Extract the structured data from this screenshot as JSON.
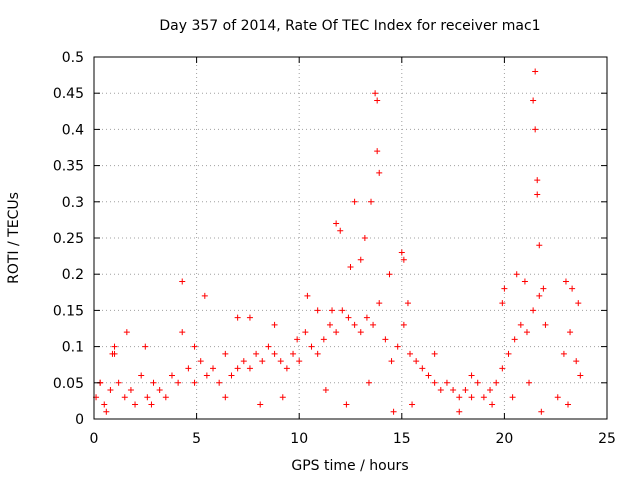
{
  "chart_data": {
    "type": "scatter",
    "title": "Day 357 of 2014, Rate Of TEC Index for receiver mac1",
    "xlabel": "GPS time / hours",
    "ylabel": "ROTI / TECUs",
    "xlim": [
      0,
      25
    ],
    "ylim": [
      0,
      0.5
    ],
    "x_ticks": [
      "0",
      "5",
      "10",
      "15",
      "20",
      "25"
    ],
    "y_ticks": [
      "0",
      "0.05",
      "0.1",
      "0.15",
      "0.2",
      "0.25",
      "0.3",
      "0.35",
      "0.4",
      "0.45",
      "0.5"
    ],
    "grid": true,
    "legend": "none",
    "marker": "+",
    "color": "#ff0000",
    "series": [
      {
        "x": [
          0.1,
          0.3,
          0.5,
          0.8,
          1.0,
          1.2,
          1.5,
          1.8,
          2.0,
          2.3,
          2.6,
          2.9,
          3.2,
          3.5,
          3.8,
          4.1,
          4.3,
          4.6,
          4.9,
          5.2,
          5.5,
          5.8,
          6.1,
          6.4,
          6.7,
          7.0,
          7.3,
          7.6,
          7.9,
          8.2,
          8.5,
          8.8,
          9.1,
          9.4,
          9.7,
          10.0,
          10.3,
          10.6,
          10.9,
          11.2,
          11.5,
          11.8,
          12.1,
          12.4,
          12.7,
          13.0,
          13.3,
          13.6,
          13.9,
          14.2,
          14.5,
          14.8,
          15.1,
          15.4,
          15.7,
          16.0,
          16.3,
          16.6,
          16.9,
          17.2,
          17.5,
          17.8,
          18.1,
          18.4,
          18.7,
          19.0,
          19.3,
          19.6,
          19.9,
          20.2,
          20.5,
          20.8,
          21.1,
          21.4,
          21.7,
          22.0,
          22.6,
          22.9,
          23.2,
          23.5,
          23.7,
          0.3,
          0.9,
          1.0,
          1.6,
          2.5,
          4.3,
          4.9,
          5.4,
          7.0,
          7.6,
          8.8,
          9.9,
          10.4,
          10.9,
          11.6,
          11.8,
          12.0,
          12.5,
          12.7,
          13.0,
          13.2,
          13.5,
          13.7,
          13.8,
          13.8,
          13.9,
          14.4,
          15.0,
          15.1,
          15.3,
          16.6,
          18.4,
          19.9,
          20.0,
          20.6,
          21.0,
          21.4,
          21.5,
          21.5,
          21.6,
          21.6,
          21.7,
          21.9,
          23.0,
          23.3,
          23.6,
          0.6,
          2.8,
          6.4,
          8.1,
          9.2,
          11.3,
          12.3,
          13.4,
          14.6,
          15.5,
          17.8,
          19.4,
          20.4,
          21.2,
          21.8,
          23.1
        ],
        "y": [
          0.03,
          0.05,
          0.02,
          0.04,
          0.09,
          0.05,
          0.03,
          0.04,
          0.02,
          0.06,
          0.03,
          0.05,
          0.04,
          0.03,
          0.06,
          0.05,
          0.12,
          0.07,
          0.05,
          0.08,
          0.06,
          0.07,
          0.05,
          0.09,
          0.06,
          0.07,
          0.08,
          0.07,
          0.09,
          0.08,
          0.1,
          0.09,
          0.08,
          0.07,
          0.09,
          0.08,
          0.12,
          0.1,
          0.09,
          0.11,
          0.13,
          0.12,
          0.15,
          0.14,
          0.13,
          0.12,
          0.14,
          0.13,
          0.16,
          0.11,
          0.08,
          0.1,
          0.13,
          0.09,
          0.08,
          0.07,
          0.06,
          0.05,
          0.04,
          0.05,
          0.04,
          0.03,
          0.04,
          0.03,
          0.05,
          0.03,
          0.04,
          0.05,
          0.07,
          0.09,
          0.11,
          0.13,
          0.12,
          0.15,
          0.17,
          0.13,
          0.03,
          0.09,
          0.12,
          0.08,
          0.06,
          0.05,
          0.09,
          0.1,
          0.12,
          0.1,
          0.19,
          0.1,
          0.17,
          0.14,
          0.14,
          0.13,
          0.11,
          0.17,
          0.15,
          0.15,
          0.27,
          0.26,
          0.21,
          0.3,
          0.22,
          0.25,
          0.3,
          0.45,
          0.44,
          0.37,
          0.34,
          0.2,
          0.23,
          0.22,
          0.16,
          0.09,
          0.06,
          0.16,
          0.18,
          0.2,
          0.19,
          0.44,
          0.48,
          0.4,
          0.33,
          0.31,
          0.24,
          0.18,
          0.19,
          0.18,
          0.16,
          0.01,
          0.02,
          0.03,
          0.02,
          0.03,
          0.04,
          0.02,
          0.05,
          0.01,
          0.02,
          0.01,
          0.02,
          0.03,
          0.05,
          0.01,
          0.02
        ]
      }
    ]
  }
}
